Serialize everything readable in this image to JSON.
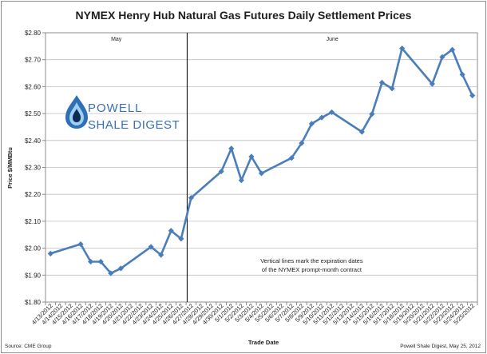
{
  "chart_data": {
    "type": "line",
    "title": "NYMEX Henry Hub Natural Gas Futures Daily Settlement Prices",
    "xlabel": "Trade Date",
    "ylabel": "Price $/MMBtu",
    "ylim": [
      1.8,
      2.8
    ],
    "y_tick_step": 0.1,
    "y_tick_prefix": "$",
    "grid": true,
    "line_color": "#4a7ebb",
    "categories": [
      "4/13/2012",
      "4/16/2012",
      "4/17/2012",
      "4/18/2012",
      "4/19/2012",
      "4/20/2012",
      "4/23/2012",
      "4/24/2012",
      "4/25/2012",
      "4/26/2012",
      "4/27/2012",
      "4/30/2012",
      "5/1/2012",
      "5/2/2012",
      "5/3/2012",
      "5/4/2012",
      "5/7/2012",
      "5/8/2012",
      "5/9/2012",
      "5/10/2012",
      "5/11/2012",
      "5/14/2012",
      "5/15/2012",
      "5/16/2012",
      "5/17/2012",
      "5/18/2012",
      "5/21/2012",
      "5/22/2012",
      "5/23/2012",
      "5/24/2012",
      "5/25/2012"
    ],
    "tick_labels": [
      "4/13/2012",
      "4/14/2012",
      "4/15/2012",
      "4/16/2012",
      "4/17/2012",
      "4/18/2012",
      "4/19/2012",
      "4/20/2012",
      "4/21/2012",
      "4/22/2012",
      "4/23/2012",
      "4/24/2012",
      "4/25/2012",
      "4/26/2012",
      "4/27/2012",
      "4/28/2012",
      "4/29/2012",
      "4/30/2012",
      "5/1/2012",
      "5/2/2012",
      "5/3/2012",
      "5/4/2012",
      "5/5/2012",
      "5/6/2012",
      "5/7/2012",
      "5/8/2012",
      "5/9/2012",
      "5/10/2012",
      "5/11/2012",
      "5/12/2012",
      "5/13/2012",
      "5/14/2012",
      "5/15/2012",
      "5/16/2012",
      "5/17/2012",
      "5/18/2012",
      "5/19/2012",
      "5/20/2012",
      "5/21/2012",
      "5/22/2012",
      "5/23/2012",
      "5/24/2012",
      "5/25/2012"
    ],
    "series": [
      {
        "values": [
          1.98,
          2.015,
          1.95,
          1.95,
          1.907,
          1.925,
          2.005,
          1.975,
          2.065,
          2.035,
          2.187,
          2.285,
          2.37,
          2.252,
          2.34,
          2.278,
          2.335,
          2.39,
          2.462,
          2.485,
          2.505,
          2.432,
          2.498,
          2.615,
          2.593,
          2.742,
          2.61,
          2.71,
          2.737,
          2.645,
          2.567
        ]
      }
    ],
    "expiration_lines": [
      {
        "after_index": 9,
        "label": "May"
      },
      {
        "after_index": 30,
        "label": "June"
      }
    ],
    "annotation": "Vertical lines mark the expiration dates\nof the NYMEX prompt-month contract"
  },
  "logo": {
    "line1": "POWELL",
    "line2": "SHALE DIGEST"
  },
  "footer": {
    "source": "Source: CME Group",
    "credit": "Powell Shale Digest, May 25, 2012"
  }
}
